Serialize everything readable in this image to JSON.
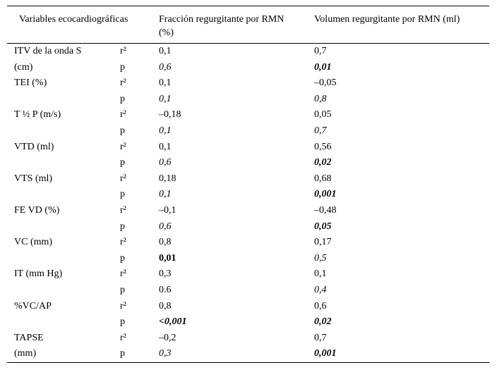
{
  "table": {
    "header": [
      "Variables ecocardiográficas",
      "Fracción regurgitante por RMN (%)",
      "Volumen regurgitante por RMN (ml)"
    ],
    "groups": [
      {
        "variable": "ITV de la onda S\n(cm)",
        "rows": [
          [
            "r²",
            "0,1",
            "0,7"
          ],
          [
            "p",
            "0,6",
            "0,01"
          ]
        ]
      },
      {
        "variable": "TEI (%)",
        "rows": [
          [
            "r²",
            "0,1",
            "–0,05"
          ],
          [
            "p",
            "0,1",
            "0,8"
          ]
        ]
      },
      {
        "variable": "T ½ P (m/s)",
        "rows": [
          [
            "r²",
            "–0,18",
            "0,05"
          ],
          [
            "p",
            "0,1",
            "0,7"
          ]
        ]
      },
      {
        "variable": "VTD (ml)",
        "rows": [
          [
            "r²",
            "0,1",
            "0,56"
          ],
          [
            "p",
            "0,6",
            "0,02"
          ]
        ]
      },
      {
        "variable": "VTS (ml)",
        "rows": [
          [
            "r²",
            "0,18",
            "0,68"
          ],
          [
            "p",
            "0,1",
            "0,001"
          ]
        ]
      },
      {
        "variable": "FE VD (%)",
        "rows": [
          [
            "r²",
            "–0,1",
            "–0,48"
          ],
          [
            "p",
            "0,6",
            "0,05"
          ]
        ]
      },
      {
        "variable": "VC (mm)",
        "rows": [
          [
            "r²",
            "0,8",
            "0,17"
          ],
          [
            "p",
            "0,01",
            "0,5"
          ]
        ]
      },
      {
        "variable": "IT (mm Hg)",
        "rows": [
          [
            "r²",
            "0,3",
            "0,1"
          ],
          [
            "p",
            "0.6",
            "0,4"
          ]
        ]
      },
      {
        "variable": "%VC/AP",
        "rows": [
          [
            "r²",
            "0,8",
            "0,6"
          ],
          [
            "p",
            "<0,001",
            "0,02"
          ]
        ]
      },
      {
        "variable": "TAPSE\n(mm)",
        "rows": [
          [
            "r²",
            "–0,2",
            "0,7"
          ],
          [
            "p",
            "0,3",
            "0,001"
          ]
        ]
      }
    ]
  }
}
